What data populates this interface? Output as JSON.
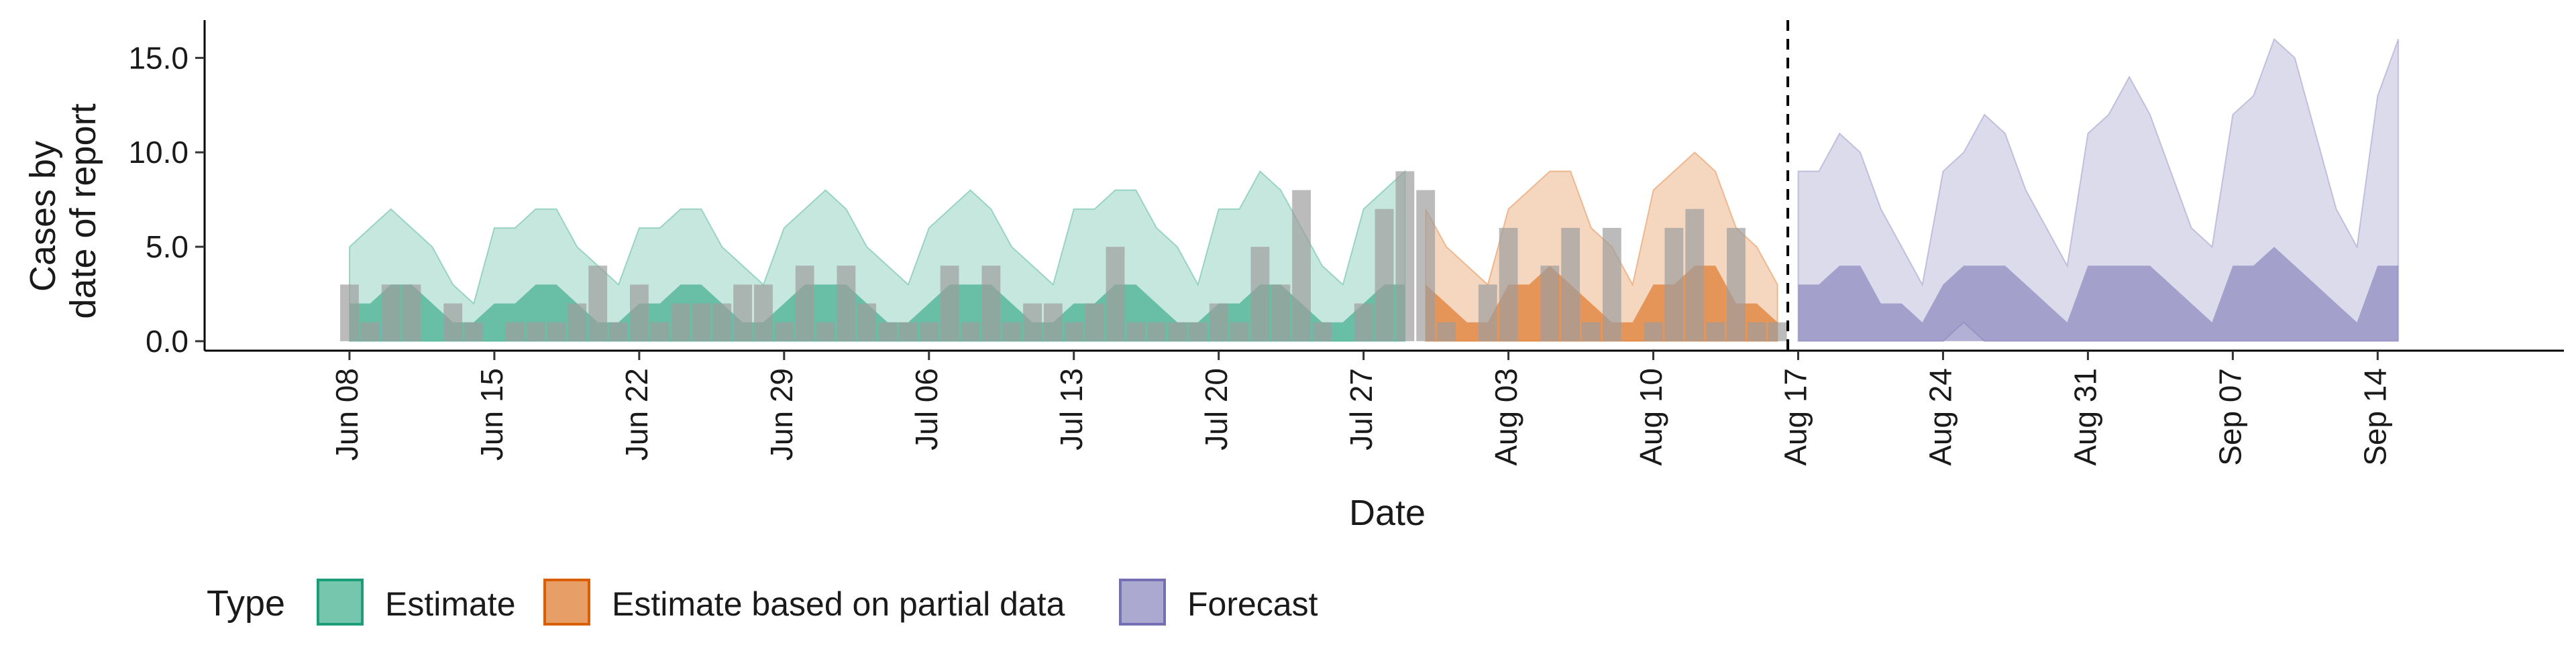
{
  "chart_data": {
    "type": "area",
    "xlabel": "Date",
    "ylabel_lines": [
      "Cases by",
      "date of report"
    ],
    "ylim": [
      -0.5,
      17
    ],
    "y_ticks": [
      0.0,
      5.0,
      10.0,
      15.0
    ],
    "y_tick_labels": [
      "0.0",
      "5.0",
      "10.0",
      "15.0"
    ],
    "x_ticks": [
      "2020-06-08",
      "2020-06-15",
      "2020-06-22",
      "2020-06-29",
      "2020-07-06",
      "2020-07-13",
      "2020-07-20",
      "2020-07-27",
      "2020-08-03",
      "2020-08-10",
      "2020-08-17",
      "2020-08-24",
      "2020-08-31",
      "2020-09-07",
      "2020-09-14"
    ],
    "x_tick_labels": [
      "Jun 08",
      "Jun 15",
      "Jun 22",
      "Jun 29",
      "Jul 06",
      "Jul 13",
      "Jul 20",
      "Jul 27",
      "Aug 03",
      "Aug 10",
      "Aug 17",
      "Aug 24",
      "Aug 31",
      "Sep 07",
      "Sep 14"
    ],
    "xlim": [
      "2020-06-01",
      "2020-09-23"
    ],
    "forecast_start_line": "2020-08-16",
    "grid": false,
    "legend": {
      "title": "Type",
      "position": "bottom",
      "entries": [
        {
          "label": "Estimate",
          "color": "#1b9e77"
        },
        {
          "label": "Estimate based on partial data",
          "color": "#d95f02"
        },
        {
          "label": "Forecast",
          "color": "#7570b3"
        }
      ]
    },
    "reported_cases": {
      "color": "#9e9e9e",
      "dates": [
        "2020-06-08",
        "2020-06-09",
        "2020-06-10",
        "2020-06-11",
        "2020-06-12",
        "2020-06-13",
        "2020-06-14",
        "2020-06-15",
        "2020-06-16",
        "2020-06-17",
        "2020-06-18",
        "2020-06-19",
        "2020-06-20",
        "2020-06-21",
        "2020-06-22",
        "2020-06-23",
        "2020-06-24",
        "2020-06-25",
        "2020-06-26",
        "2020-06-27",
        "2020-06-28",
        "2020-06-29",
        "2020-06-30",
        "2020-07-01",
        "2020-07-02",
        "2020-07-03",
        "2020-07-04",
        "2020-07-05",
        "2020-07-06",
        "2020-07-07",
        "2020-07-08",
        "2020-07-09",
        "2020-07-10",
        "2020-07-11",
        "2020-07-12",
        "2020-07-13",
        "2020-07-14",
        "2020-07-15",
        "2020-07-16",
        "2020-07-17",
        "2020-07-18",
        "2020-07-19",
        "2020-07-20",
        "2020-07-21",
        "2020-07-22",
        "2020-07-23",
        "2020-07-24",
        "2020-07-25",
        "2020-07-26",
        "2020-07-27",
        "2020-07-28",
        "2020-07-29",
        "2020-07-30",
        "2020-07-31",
        "2020-08-01",
        "2020-08-02",
        "2020-08-03",
        "2020-08-04",
        "2020-08-05",
        "2020-08-06",
        "2020-08-07",
        "2020-08-08",
        "2020-08-09",
        "2020-08-10",
        "2020-08-11",
        "2020-08-12",
        "2020-08-13",
        "2020-08-14",
        "2020-08-15",
        "2020-08-16"
      ],
      "values": [
        3,
        1,
        3,
        3,
        0,
        2,
        1,
        0,
        1,
        1,
        1,
        2,
        4,
        1,
        3,
        1,
        2,
        2,
        2,
        3,
        3,
        1,
        4,
        1,
        4,
        2,
        1,
        1,
        1,
        4,
        1,
        4,
        1,
        2,
        2,
        1,
        2,
        5,
        1,
        1,
        1,
        1,
        2,
        1,
        5,
        3,
        8,
        1,
        0,
        2,
        7,
        9,
        8,
        1,
        0,
        3,
        6,
        0,
        4,
        6,
        1,
        6,
        0,
        1,
        6,
        7,
        1,
        6,
        1,
        1
      ]
    },
    "series": [
      {
        "name": "Estimate",
        "color": "#1b9e77",
        "dates": [
          "2020-06-08",
          "2020-06-09",
          "2020-06-10",
          "2020-06-11",
          "2020-06-12",
          "2020-06-13",
          "2020-06-14",
          "2020-06-15",
          "2020-06-16",
          "2020-06-17",
          "2020-06-18",
          "2020-06-19",
          "2020-06-20",
          "2020-06-21",
          "2020-06-22",
          "2020-06-23",
          "2020-06-24",
          "2020-06-25",
          "2020-06-26",
          "2020-06-27",
          "2020-06-28",
          "2020-06-29",
          "2020-06-30",
          "2020-07-01",
          "2020-07-02",
          "2020-07-03",
          "2020-07-04",
          "2020-07-05",
          "2020-07-06",
          "2020-07-07",
          "2020-07-08",
          "2020-07-09",
          "2020-07-10",
          "2020-07-11",
          "2020-07-12",
          "2020-07-13",
          "2020-07-14",
          "2020-07-15",
          "2020-07-16",
          "2020-07-17",
          "2020-07-18",
          "2020-07-19",
          "2020-07-20",
          "2020-07-21",
          "2020-07-22",
          "2020-07-23",
          "2020-07-24",
          "2020-07-25",
          "2020-07-26",
          "2020-07-27",
          "2020-07-28",
          "2020-07-29"
        ],
        "lower_90": [
          0,
          0,
          0,
          0,
          0,
          0,
          0,
          0,
          0,
          0,
          0,
          0,
          0,
          0,
          0,
          0,
          0,
          0,
          0,
          0,
          0,
          0,
          0,
          0,
          0,
          0,
          0,
          0,
          0,
          0,
          0,
          0,
          0,
          0,
          0,
          0,
          0,
          0,
          0,
          0,
          0,
          0,
          0,
          0,
          0,
          0,
          0,
          0,
          0,
          0,
          0,
          0
        ],
        "upper_90": [
          5,
          6,
          7,
          6,
          5,
          3,
          2,
          6,
          6,
          7,
          7,
          5,
          4,
          3,
          6,
          6,
          7,
          7,
          5,
          4,
          3,
          6,
          7,
          8,
          7,
          5,
          4,
          3,
          6,
          7,
          8,
          7,
          5,
          4,
          3,
          7,
          7,
          8,
          8,
          6,
          5,
          3,
          7,
          7,
          9,
          8,
          6,
          4,
          3,
          7,
          8,
          9
        ],
        "lower_50": [
          0,
          0,
          0,
          0,
          0,
          0,
          0,
          0,
          0,
          0,
          0,
          0,
          0,
          0,
          0,
          0,
          0,
          0,
          0,
          0,
          0,
          0,
          0,
          0,
          0,
          0,
          0,
          0,
          0,
          0,
          0,
          0,
          0,
          0,
          0,
          0,
          0,
          0,
          0,
          0,
          0,
          0,
          0,
          0,
          0,
          0,
          0,
          0,
          0,
          0,
          0,
          0
        ],
        "upper_50": [
          2,
          2,
          3,
          3,
          2,
          1,
          1,
          2,
          2,
          3,
          3,
          2,
          1,
          1,
          2,
          2,
          3,
          3,
          2,
          1,
          1,
          2,
          3,
          3,
          3,
          2,
          1,
          1,
          2,
          3,
          3,
          3,
          2,
          1,
          1,
          2,
          2,
          3,
          3,
          2,
          1,
          1,
          2,
          2,
          3,
          3,
          2,
          1,
          1,
          2,
          3,
          3
        ]
      },
      {
        "name": "Estimate based on partial data",
        "color": "#d95f02",
        "dates": [
          "2020-07-30",
          "2020-07-31",
          "2020-08-01",
          "2020-08-02",
          "2020-08-03",
          "2020-08-04",
          "2020-08-05",
          "2020-08-06",
          "2020-08-07",
          "2020-08-08",
          "2020-08-09",
          "2020-08-10",
          "2020-08-11",
          "2020-08-12",
          "2020-08-13",
          "2020-08-14",
          "2020-08-15",
          "2020-08-16"
        ],
        "lower_90": [
          0,
          0,
          0,
          0,
          0,
          0,
          0,
          0,
          0,
          0,
          0,
          0,
          0,
          0,
          0,
          0,
          0,
          0
        ],
        "upper_90": [
          7,
          5,
          4,
          3,
          7,
          8,
          9,
          9,
          6,
          5,
          3,
          8,
          9,
          10,
          9,
          6,
          5,
          3
        ],
        "lower_50": [
          0,
          0,
          0,
          0,
          0,
          0,
          0,
          0,
          0,
          0,
          0,
          0,
          0,
          0,
          0,
          0,
          0,
          0
        ],
        "upper_50": [
          3,
          2,
          1,
          1,
          3,
          3,
          4,
          3,
          2,
          1,
          1,
          3,
          3,
          4,
          4,
          2,
          2,
          1
        ]
      },
      {
        "name": "Forecast",
        "color": "#7570b3",
        "dates": [
          "2020-08-17",
          "2020-08-18",
          "2020-08-19",
          "2020-08-20",
          "2020-08-21",
          "2020-08-22",
          "2020-08-23",
          "2020-08-24",
          "2020-08-25",
          "2020-08-26",
          "2020-08-27",
          "2020-08-28",
          "2020-08-29",
          "2020-08-30",
          "2020-08-31",
          "2020-09-01",
          "2020-09-02",
          "2020-09-03",
          "2020-09-04",
          "2020-09-05",
          "2020-09-06",
          "2020-09-07",
          "2020-09-08",
          "2020-09-09",
          "2020-09-10",
          "2020-09-11",
          "2020-09-12",
          "2020-09-13",
          "2020-09-14",
          "2020-09-15"
        ],
        "lower_90": [
          0,
          0,
          0,
          0,
          0,
          0,
          0,
          0,
          1,
          0,
          0,
          0,
          0,
          0,
          0,
          0,
          0,
          0,
          0,
          0,
          0,
          0,
          0,
          0,
          0,
          0,
          0,
          0,
          0,
          0
        ],
        "upper_90": [
          9,
          9,
          11,
          10,
          7,
          5,
          3,
          9,
          10,
          12,
          11,
          8,
          6,
          4,
          11,
          12,
          14,
          12,
          9,
          6,
          5,
          12,
          13,
          16,
          15,
          11,
          7,
          5,
          13,
          16
        ],
        "lower_50": [
          0,
          0,
          0,
          0,
          0,
          0,
          0,
          0,
          0,
          0,
          0,
          0,
          0,
          0,
          0,
          0,
          0,
          0,
          0,
          0,
          0,
          0,
          0,
          0,
          0,
          0,
          0,
          0,
          0,
          0
        ],
        "upper_50": [
          3,
          3,
          4,
          4,
          2,
          2,
          1,
          3,
          4,
          4,
          4,
          3,
          2,
          1,
          4,
          4,
          4,
          4,
          3,
          2,
          1,
          4,
          4,
          5,
          4,
          3,
          2,
          1,
          4,
          4
        ]
      }
    ]
  }
}
